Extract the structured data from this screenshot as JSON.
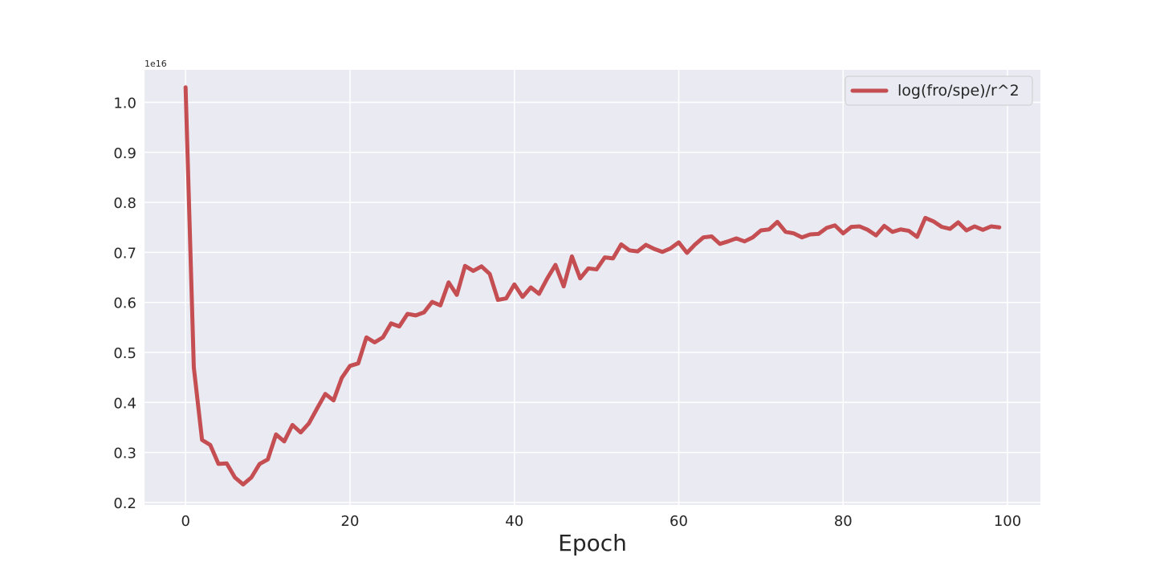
{
  "chart_data": {
    "type": "line",
    "title": "",
    "xlabel": "Epoch",
    "ylabel": "",
    "y_offset_text": "1e16",
    "xlim": [
      -5,
      104
    ],
    "ylim": [
      0.195,
      1.065
    ],
    "x_ticks": [
      0,
      20,
      40,
      60,
      80,
      100
    ],
    "y_ticks": [
      0.2,
      0.3,
      0.4,
      0.5,
      0.6,
      0.7,
      0.8,
      0.9,
      1.0
    ],
    "y_tick_labels": [
      "0.2",
      "0.3",
      "0.4",
      "0.5",
      "0.6",
      "0.7",
      "0.8",
      "0.9",
      "1.0"
    ],
    "grid": true,
    "legend_position": "top-right",
    "background_color": "#eaeaf2",
    "series": [
      {
        "name": "log(fro/spe)/r^2",
        "color": "#c44e52",
        "x": [
          0,
          1,
          2,
          3,
          4,
          5,
          6,
          7,
          8,
          9,
          10,
          11,
          12,
          13,
          14,
          15,
          16,
          17,
          18,
          19,
          20,
          21,
          22,
          23,
          24,
          25,
          26,
          27,
          28,
          29,
          30,
          31,
          32,
          33,
          34,
          35,
          36,
          37,
          38,
          39,
          40,
          41,
          42,
          43,
          44,
          45,
          46,
          47,
          48,
          49,
          50,
          51,
          52,
          53,
          54,
          55,
          56,
          57,
          58,
          59,
          60,
          61,
          62,
          63,
          64,
          65,
          66,
          67,
          68,
          69,
          70,
          71,
          72,
          73,
          74,
          75,
          76,
          77,
          78,
          79,
          80,
          81,
          82,
          83,
          84,
          85,
          86,
          87,
          88,
          89,
          90,
          91,
          92,
          93,
          94,
          95,
          96,
          97,
          98,
          99
        ],
        "y": [
          1.03,
          0.47,
          0.325,
          0.315,
          0.277,
          0.278,
          0.25,
          0.236,
          0.25,
          0.277,
          0.286,
          0.336,
          0.322,
          0.355,
          0.34,
          0.358,
          0.388,
          0.417,
          0.404,
          0.449,
          0.473,
          0.478,
          0.53,
          0.52,
          0.53,
          0.558,
          0.552,
          0.577,
          0.574,
          0.58,
          0.601,
          0.594,
          0.64,
          0.615,
          0.673,
          0.663,
          0.672,
          0.657,
          0.605,
          0.608,
          0.636,
          0.611,
          0.63,
          0.617,
          0.648,
          0.675,
          0.632,
          0.692,
          0.648,
          0.668,
          0.666,
          0.69,
          0.688,
          0.716,
          0.704,
          0.702,
          0.715,
          0.707,
          0.701,
          0.708,
          0.72,
          0.699,
          0.716,
          0.73,
          0.732,
          0.717,
          0.722,
          0.728,
          0.722,
          0.73,
          0.744,
          0.746,
          0.761,
          0.741,
          0.738,
          0.73,
          0.736,
          0.737,
          0.749,
          0.754,
          0.738,
          0.751,
          0.752,
          0.745,
          0.734,
          0.753,
          0.741,
          0.746,
          0.743,
          0.731,
          0.769,
          0.762,
          0.751,
          0.747,
          0.76,
          0.744,
          0.752,
          0.745,
          0.752,
          0.75
        ]
      }
    ]
  }
}
